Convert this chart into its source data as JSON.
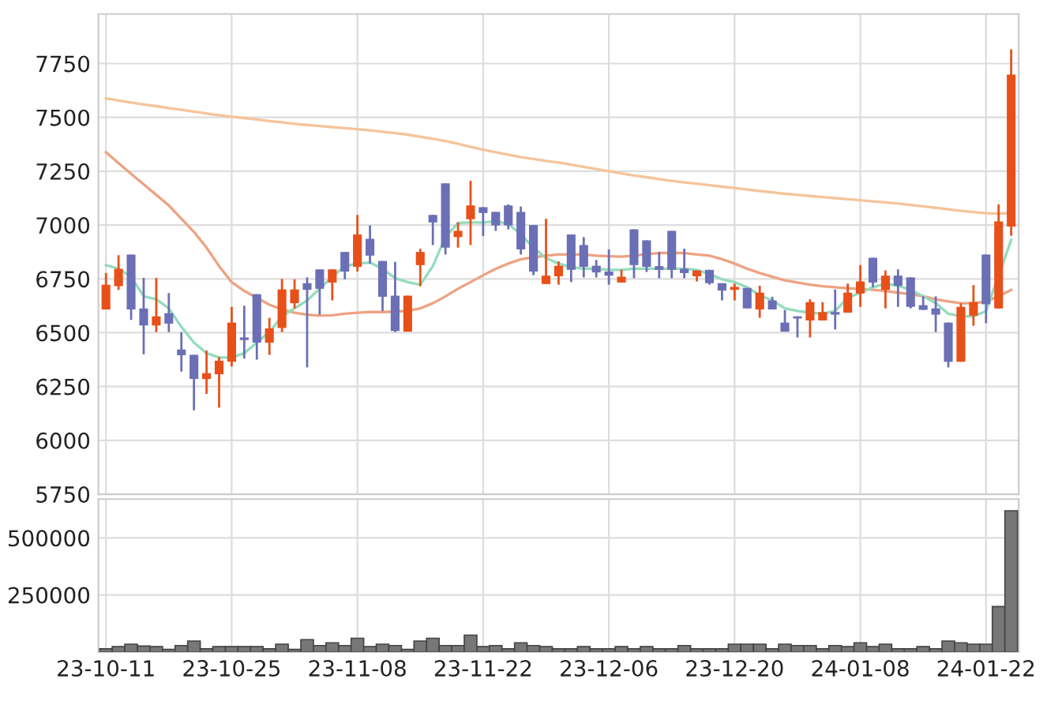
{
  "chart_data": [
    {
      "type": "candlestick",
      "tick_labels": "y",
      "grid": true,
      "categories": [
        null,
        null,
        null,
        null,
        null,
        null,
        null,
        null,
        null,
        null,
        null,
        null,
        null,
        null,
        null,
        null,
        null,
        null,
        null,
        null,
        null,
        null,
        null,
        null,
        null,
        null,
        null,
        null,
        null,
        null,
        null,
        null,
        null,
        null,
        null,
        null,
        null,
        null,
        null,
        null,
        null,
        null,
        null,
        null,
        null,
        null,
        null,
        null,
        null,
        null,
        null,
        null,
        null,
        null,
        null,
        null,
        null,
        null,
        null,
        null,
        null,
        null,
        null,
        null,
        null,
        null,
        null,
        null,
        null,
        null,
        null,
        null,
        null
      ],
      "ohlc": [
        [
          6608,
          6777,
          6608,
          6723
        ],
        [
          6716,
          6860,
          6699,
          6797
        ],
        [
          6863,
          6863,
          6559,
          6608
        ],
        [
          6613,
          6755,
          6400,
          6534
        ],
        [
          6534,
          6755,
          6503,
          6576
        ],
        [
          6591,
          6684,
          6503,
          6542
        ],
        [
          6422,
          6503,
          6319,
          6395
        ],
        [
          6397,
          6397,
          6140,
          6285
        ],
        [
          6285,
          6417,
          6216,
          6312
        ],
        [
          6307,
          6387,
          6152,
          6370
        ],
        [
          6365,
          6620,
          6343,
          6547
        ],
        [
          6478,
          6625,
          6380,
          6466
        ],
        [
          6679,
          6679,
          6375,
          6454
        ],
        [
          6454,
          6569,
          6397,
          6520
        ],
        [
          6522,
          6750,
          6503,
          6701
        ],
        [
          6637,
          6748,
          6613,
          6701
        ],
        [
          6730,
          6757,
          6339,
          6699
        ],
        [
          6794,
          6794,
          6584,
          6704
        ],
        [
          6733,
          6794,
          6650,
          6794
        ],
        [
          6875,
          6875,
          6748,
          6784
        ],
        [
          6806,
          7047,
          6784,
          6956
        ],
        [
          6936,
          6998,
          6821,
          6858
        ],
        [
          6833,
          6833,
          6601,
          6667
        ],
        [
          6672,
          6829,
          6503,
          6508
        ],
        [
          6505,
          6672,
          6505,
          6672
        ],
        [
          6814,
          6890,
          6716,
          6875
        ],
        [
          7047,
          7047,
          6907,
          7012
        ],
        [
          7194,
          7194,
          6863,
          6895
        ],
        [
          6944,
          7012,
          6895,
          6973
        ],
        [
          7027,
          7206,
          6907,
          7091
        ],
        [
          7083,
          7083,
          6949,
          7056
        ],
        [
          7061,
          7061,
          6973,
          6998
        ],
        [
          7091,
          7096,
          6980,
          6998
        ],
        [
          7061,
          7086,
          6863,
          6887
        ],
        [
          7000,
          7000,
          6767,
          6784
        ],
        [
          6726,
          7029,
          6726,
          6765
        ],
        [
          6762,
          6831,
          6723,
          6811
        ],
        [
          6956,
          6956,
          6735,
          6792
        ],
        [
          6907,
          6944,
          6757,
          6806
        ],
        [
          6811,
          6838,
          6757,
          6780
        ],
        [
          6784,
          6887,
          6723,
          6765
        ],
        [
          6733,
          6792,
          6733,
          6760
        ],
        [
          6980,
          6980,
          6753,
          6814
        ],
        [
          6929,
          6929,
          6782,
          6806
        ],
        [
          6809,
          6875,
          6753,
          6792
        ],
        [
          6973,
          6973,
          6753,
          6792
        ],
        [
          6797,
          6890,
          6753,
          6777
        ],
        [
          6762,
          6789,
          6738,
          6789
        ],
        [
          6792,
          6792,
          6723,
          6730
        ],
        [
          6730,
          6730,
          6650,
          6696
        ],
        [
          6699,
          6728,
          6650,
          6713
        ],
        [
          6708,
          6708,
          6613,
          6613
        ],
        [
          6608,
          6718,
          6569,
          6686
        ],
        [
          6650,
          6667,
          6608,
          6608
        ],
        [
          6547,
          6605,
          6505,
          6505
        ],
        [
          6576,
          6576,
          6478,
          6566
        ],
        [
          6557,
          6655,
          6478,
          6642
        ],
        [
          6557,
          6642,
          6557,
          6596
        ],
        [
          6596,
          6701,
          6515,
          6584
        ],
        [
          6593,
          6728,
          6593,
          6686
        ],
        [
          6682,
          6814,
          6620,
          6738
        ],
        [
          6848,
          6848,
          6711,
          6733
        ],
        [
          6699,
          6789,
          6613,
          6765
        ],
        [
          6765,
          6794,
          6620,
          6718
        ],
        [
          6757,
          6757,
          6613,
          6620
        ],
        [
          6628,
          6669,
          6606,
          6606
        ],
        [
          6613,
          6669,
          6503,
          6584
        ],
        [
          6547,
          6547,
          6339,
          6365
        ],
        [
          6365,
          6637,
          6365,
          6620
        ],
        [
          6579,
          6721,
          6532,
          6642
        ],
        [
          6863,
          6863,
          6544,
          6632
        ],
        [
          6613,
          7096,
          6613,
          7017
        ],
        [
          6993,
          7816,
          6950,
          7699
        ]
      ],
      "colors": [
        "#e8501a",
        "#e8501a",
        "#6b6fb5",
        "#6b6fb5",
        "#e8501a",
        "#6b6fb5",
        "#6b6fb5",
        "#6b6fb5",
        "#e8501a",
        "#e8501a",
        "#e8501a",
        "#6b6fb5",
        "#6b6fb5",
        "#e8501a",
        "#e8501a",
        "#e8501a",
        "#6b6fb5",
        "#6b6fb5",
        "#e8501a",
        "#6b6fb5",
        "#e8501a",
        "#6b6fb5",
        "#6b6fb5",
        "#6b6fb5",
        "#e8501a",
        "#e8501a",
        "#6b6fb5",
        "#6b6fb5",
        "#e8501a",
        "#e8501a",
        "#6b6fb5",
        "#6b6fb5",
        "#6b6fb5",
        "#6b6fb5",
        "#6b6fb5",
        "#e8501a",
        "#e8501a",
        "#6b6fb5",
        "#6b6fb5",
        "#6b6fb5",
        "#6b6fb5",
        "#e8501a",
        "#6b6fb5",
        "#6b6fb5",
        "#6b6fb5",
        "#6b6fb5",
        "#6b6fb5",
        "#e8501a",
        "#6b6fb5",
        "#6b6fb5",
        "#e8501a",
        "#6b6fb5",
        "#e8501a",
        "#6b6fb5",
        "#6b6fb5",
        "#6b6fb5",
        "#e8501a",
        "#e8501a",
        "#6b6fb5",
        "#e8501a",
        "#e8501a",
        "#6b6fb5",
        "#e8501a",
        "#6b6fb5",
        "#6b6fb5",
        "#6b6fb5",
        "#6b6fb5",
        "#6b6fb5",
        "#e8501a",
        "#e8501a",
        "#6b6fb5",
        "#e8501a",
        "#e8501a"
      ],
      "series": [
        {
          "type": "line",
          "color": "#f5c49a",
          "values": [
            7588,
            7578,
            7569,
            7560,
            7552,
            7543,
            7535,
            7527,
            7518,
            7510,
            7503,
            7497,
            7490,
            7483,
            7477,
            7470,
            7465,
            7460,
            7455,
            7450,
            7445,
            7440,
            7433,
            7427,
            7420,
            7410,
            7400,
            7390,
            7377,
            7363,
            7350,
            7338,
            7327,
            7315,
            7307,
            7298,
            7290,
            7280,
            7270,
            7260,
            7250,
            7240,
            7230,
            7222,
            7213,
            7205,
            7198,
            7192,
            7185,
            7178,
            7172,
            7165,
            7158,
            7152,
            7145,
            7140,
            7135,
            7130,
            7125,
            7120,
            7115,
            7110,
            7105,
            7100,
            7093,
            7087,
            7080,
            7073,
            7066,
            7060,
            7055,
            7053,
            7056
          ]
        },
        {
          "type": "line",
          "color": "#eda383",
          "values": [
            7338,
            7287,
            7238,
            7189,
            7140,
            7091,
            7029,
            6968,
            6895,
            6809,
            6735,
            6694,
            6662,
            6630,
            6608,
            6593,
            6584,
            6579,
            6581,
            6588,
            6593,
            6596,
            6596,
            6598,
            6601,
            6613,
            6637,
            6669,
            6704,
            6735,
            6767,
            6797,
            6821,
            6841,
            6850,
            6858,
            6863,
            6863,
            6863,
            6858,
            6855,
            6853,
            6858,
            6865,
            6870,
            6870,
            6870,
            6863,
            6858,
            6841,
            6821,
            6797,
            6777,
            6760,
            6743,
            6733,
            6723,
            6716,
            6711,
            6706,
            6704,
            6699,
            6694,
            6686,
            6679,
            6669,
            6655,
            6645,
            6637,
            6637,
            6645,
            6669,
            6699
          ]
        },
        {
          "type": "line",
          "color": "#94dcbc",
          "values": [
            6814,
            6797,
            6760,
            6669,
            6655,
            6613,
            6527,
            6454,
            6405,
            6385,
            6385,
            6405,
            6454,
            6503,
            6576,
            6613,
            6650,
            6704,
            6760,
            6809,
            6821,
            6826,
            6797,
            6753,
            6735,
            6723,
            6809,
            6944,
            7010,
            7012,
            7012,
            7017,
            7005,
            6956,
            6895,
            6846,
            6821,
            6804,
            6797,
            6797,
            6792,
            6792,
            6797,
            6797,
            6797,
            6797,
            6797,
            6792,
            6772,
            6748,
            6735,
            6711,
            6674,
            6650,
            6613,
            6601,
            6593,
            6588,
            6601,
            6662,
            6686,
            6711,
            6728,
            6718,
            6699,
            6669,
            6637,
            6588,
            6576,
            6576,
            6601,
            null,
            6931
          ]
        }
      ],
      "ylim": [
        5750,
        7980
      ],
      "yticks": [
        5750,
        6000,
        6250,
        6500,
        6750,
        7000,
        7250,
        7500,
        7750
      ]
    },
    {
      "type": "bar",
      "grid": true,
      "color": "#777777",
      "categories": [
        "23-10-11",
        null,
        null,
        null,
        null,
        null,
        null,
        null,
        null,
        null,
        "23-10-25",
        null,
        null,
        null,
        null,
        null,
        null,
        null,
        null,
        null,
        "23-11-08",
        null,
        null,
        null,
        null,
        null,
        null,
        null,
        null,
        null,
        "23-11-22",
        null,
        null,
        null,
        null,
        null,
        null,
        null,
        null,
        null,
        "23-12-06",
        null,
        null,
        null,
        null,
        null,
        null,
        null,
        null,
        null,
        "23-12-20",
        null,
        null,
        null,
        null,
        null,
        null,
        null,
        null,
        null,
        "24-01-08",
        null,
        null,
        null,
        null,
        null,
        null,
        null,
        null,
        null,
        "24-01-22",
        null,
        null
      ],
      "values": [
        14000,
        23000,
        34000,
        26000,
        23000,
        11000,
        28000,
        48000,
        14000,
        23000,
        23000,
        23000,
        23000,
        14000,
        34000,
        11000,
        54000,
        28000,
        40000,
        28000,
        60000,
        23000,
        34000,
        28000,
        11000,
        48000,
        60000,
        28000,
        28000,
        74000,
        23000,
        28000,
        14000,
        40000,
        28000,
        23000,
        14000,
        14000,
        23000,
        14000,
        14000,
        23000,
        14000,
        23000,
        14000,
        14000,
        28000,
        14000,
        14000,
        14000,
        34000,
        34000,
        34000,
        14000,
        34000,
        28000,
        28000,
        14000,
        28000,
        23000,
        40000,
        23000,
        34000,
        14000,
        14000,
        23000,
        14000,
        48000,
        40000,
        34000,
        34000,
        199000,
        619000
      ],
      "ylim": [
        0,
        670000
      ],
      "yticks": [
        250000,
        500000
      ]
    }
  ]
}
